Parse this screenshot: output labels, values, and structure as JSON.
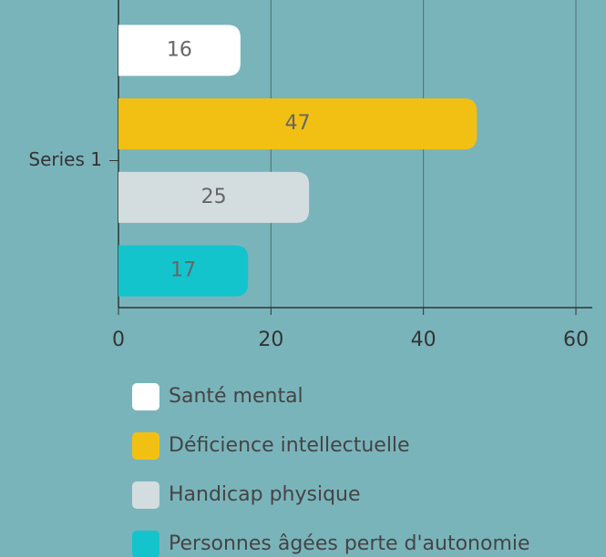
{
  "chart_data": {
    "type": "bar",
    "orientation": "horizontal",
    "categories": [
      "Series 1"
    ],
    "series": [
      {
        "name": "Santé mental",
        "color": "#ffffff",
        "values": [
          16
        ]
      },
      {
        "name": "Déficience intellectuelle",
        "color": "#f2c012",
        "values": [
          47
        ]
      },
      {
        "name": "Handicap physique",
        "color": "#d3dde0",
        "values": [
          25
        ]
      },
      {
        "name": "Personnes âgées perte d'autonomie",
        "color": "#13c4cc",
        "values": [
          17
        ]
      }
    ],
    "xlim": [
      0,
      60
    ],
    "xticks": [
      0,
      20,
      40,
      60
    ],
    "grid": true,
    "legend": "bottom"
  }
}
